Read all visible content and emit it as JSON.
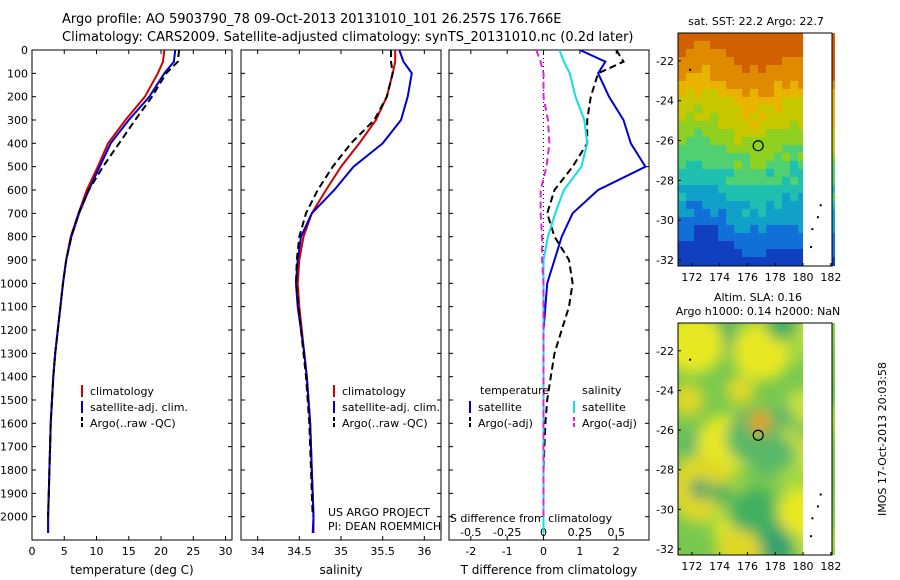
{
  "header": {
    "line1": "Argo profile: AO 5903790_78 09-Oct-2013 20131010_101 26.257S 176.766E",
    "line2": "Climatology: CARS2009. Satellite-adjusted climatology: synTS_20131010.nc (0.2d later)"
  },
  "colors": {
    "climatology": "#d00000",
    "satellite": "#0000d0",
    "argo": "#000000",
    "satellite_salinity": "#10e0e0",
    "argo_salinity": "#e020e0"
  },
  "credits": {
    "line1": "US ARGO PROJECT",
    "line2": "PI: DEAN ROEMMICH"
  },
  "stamp": "IMOS 17-Oct-2013 20:03:58",
  "chart_data": [
    {
      "type": "line",
      "name": "temperature-profile",
      "xlabel": "temperature (deg C)",
      "ylabel": "",
      "xlim": [
        0,
        31
      ],
      "ylim": [
        2100,
        0
      ],
      "xticks": [
        0,
        5,
        10,
        15,
        20,
        25,
        30
      ],
      "yticks": [
        0,
        100,
        200,
        300,
        400,
        500,
        600,
        700,
        800,
        900,
        1000,
        1100,
        1200,
        1300,
        1400,
        1500,
        1600,
        1700,
        1800,
        1900,
        2000
      ],
      "legend": [
        "climatology",
        "satellite-adj. clim.",
        "Argo(..raw -QC)"
      ],
      "legend_position": "lower-center",
      "series": [
        {
          "name": "climatology",
          "color": "#d00000",
          "style": "solid",
          "points": [
            [
              20.5,
              0
            ],
            [
              20.3,
              50
            ],
            [
              19.5,
              100
            ],
            [
              17.5,
              200
            ],
            [
              14.5,
              300
            ],
            [
              11.8,
              400
            ],
            [
              10.2,
              500
            ],
            [
              8.5,
              600
            ],
            [
              7.2,
              700
            ],
            [
              6.0,
              800
            ],
            [
              5.3,
              900
            ],
            [
              4.8,
              1000
            ],
            [
              4.4,
              1100
            ],
            [
              4.0,
              1200
            ],
            [
              3.6,
              1300
            ],
            [
              3.3,
              1400
            ],
            [
              3.1,
              1500
            ],
            [
              2.9,
              1600
            ],
            [
              2.8,
              1700
            ],
            [
              2.7,
              1800
            ],
            [
              2.6,
              1900
            ],
            [
              2.5,
              2000
            ],
            [
              2.5,
              2070
            ]
          ]
        },
        {
          "name": "satellite-adj. clim.",
          "color": "#0000d0",
          "style": "solid",
          "points": [
            [
              22.2,
              0
            ],
            [
              22.0,
              50
            ],
            [
              20.5,
              100
            ],
            [
              18.2,
              200
            ],
            [
              15.0,
              300
            ],
            [
              12.2,
              400
            ],
            [
              10.5,
              500
            ],
            [
              8.8,
              600
            ],
            [
              7.3,
              700
            ],
            [
              6.1,
              800
            ],
            [
              5.3,
              900
            ],
            [
              4.8,
              1000
            ],
            [
              4.4,
              1100
            ],
            [
              4.0,
              1200
            ],
            [
              3.6,
              1300
            ],
            [
              3.3,
              1400
            ],
            [
              3.1,
              1500
            ],
            [
              2.9,
              1600
            ],
            [
              2.8,
              1700
            ],
            [
              2.7,
              1800
            ],
            [
              2.6,
              1900
            ],
            [
              2.5,
              2000
            ],
            [
              2.5,
              2070
            ]
          ]
        },
        {
          "name": "Argo(..raw -QC)",
          "color": "#000000",
          "style": "dashed",
          "points": [
            [
              22.8,
              0
            ],
            [
              22.6,
              50
            ],
            [
              20.8,
              100
            ],
            [
              18.6,
              200
            ],
            [
              16.0,
              300
            ],
            [
              13.5,
              400
            ],
            [
              11.0,
              500
            ],
            [
              8.8,
              600
            ],
            [
              7.2,
              700
            ],
            [
              6.1,
              800
            ],
            [
              5.3,
              900
            ],
            [
              4.8,
              1000
            ],
            [
              4.4,
              1100
            ],
            [
              4.0,
              1200
            ],
            [
              3.6,
              1300
            ],
            [
              3.3,
              1400
            ],
            [
              3.1,
              1500
            ],
            [
              2.9,
              1600
            ],
            [
              2.8,
              1700
            ],
            [
              2.7,
              1800
            ],
            [
              2.6,
              1900
            ],
            [
              2.5,
              2000
            ]
          ]
        }
      ]
    },
    {
      "type": "line",
      "name": "salinity-profile",
      "xlabel": "salinity",
      "xlim": [
        33.8,
        36.2
      ],
      "ylim": [
        2100,
        0
      ],
      "xticks": [
        34,
        34.5,
        35,
        35.5,
        36
      ],
      "legend": [
        "climatology",
        "satellite-adj. clim.",
        "Argo(..raw -QC)"
      ],
      "legend_position": "lower-center",
      "series": [
        {
          "name": "climatology",
          "color": "#d00000",
          "style": "solid",
          "points": [
            [
              35.65,
              0
            ],
            [
              35.65,
              50
            ],
            [
              35.62,
              100
            ],
            [
              35.55,
              200
            ],
            [
              35.42,
              300
            ],
            [
              35.22,
              400
            ],
            [
              35.0,
              500
            ],
            [
              34.82,
              600
            ],
            [
              34.65,
              700
            ],
            [
              34.55,
              800
            ],
            [
              34.5,
              900
            ],
            [
              34.48,
              1000
            ],
            [
              34.5,
              1100
            ],
            [
              34.53,
              1200
            ],
            [
              34.56,
              1300
            ],
            [
              34.59,
              1400
            ],
            [
              34.61,
              1500
            ],
            [
              34.63,
              1600
            ],
            [
              34.64,
              1700
            ],
            [
              34.65,
              1800
            ],
            [
              34.66,
              1900
            ],
            [
              34.67,
              2000
            ],
            [
              34.67,
              2070
            ]
          ]
        },
        {
          "name": "satellite-adj. clim.",
          "color": "#0000d0",
          "style": "solid",
          "points": [
            [
              35.7,
              0
            ],
            [
              35.75,
              50
            ],
            [
              35.85,
              100
            ],
            [
              35.8,
              200
            ],
            [
              35.72,
              300
            ],
            [
              35.5,
              400
            ],
            [
              35.15,
              500
            ],
            [
              34.92,
              600
            ],
            [
              34.65,
              700
            ],
            [
              34.52,
              800
            ],
            [
              34.48,
              900
            ],
            [
              34.46,
              1000
            ],
            [
              34.48,
              1100
            ],
            [
              34.52,
              1200
            ],
            [
              34.56,
              1300
            ],
            [
              34.59,
              1400
            ],
            [
              34.61,
              1500
            ],
            [
              34.63,
              1600
            ],
            [
              34.64,
              1700
            ],
            [
              34.65,
              1800
            ],
            [
              34.66,
              1900
            ],
            [
              34.67,
              2000
            ],
            [
              34.66,
              2070
            ]
          ]
        },
        {
          "name": "Argo(..raw -QC)",
          "color": "#000000",
          "style": "dashed",
          "points": [
            [
              35.6,
              0
            ],
            [
              35.6,
              50
            ],
            [
              35.62,
              100
            ],
            [
              35.55,
              200
            ],
            [
              35.4,
              300
            ],
            [
              35.12,
              400
            ],
            [
              34.9,
              500
            ],
            [
              34.72,
              600
            ],
            [
              34.58,
              700
            ],
            [
              34.5,
              800
            ],
            [
              34.47,
              900
            ],
            [
              34.46,
              1000
            ],
            [
              34.49,
              1100
            ],
            [
              34.52,
              1200
            ],
            [
              34.55,
              1300
            ],
            [
              34.58,
              1400
            ],
            [
              34.6,
              1500
            ],
            [
              34.62,
              1600
            ],
            [
              34.63,
              1700
            ],
            [
              34.64,
              1800
            ],
            [
              34.65,
              1900
            ],
            [
              34.66,
              2000
            ]
          ]
        }
      ]
    },
    {
      "type": "line",
      "name": "difference-profile",
      "xlabel": "T difference from climatology",
      "xlabel_top": "S difference from climatology",
      "xlim": [
        -2.6,
        2.9
      ],
      "ylim": [
        2100,
        0
      ],
      "xticks": [
        -2,
        -1,
        0,
        1,
        2
      ],
      "xticks_top": [
        -0.5,
        -0.25,
        0,
        0.25,
        0.5
      ],
      "legend_headers": [
        "temperature",
        "salinity"
      ],
      "legend": [
        "satellite",
        "Argo(-adj)",
        "satellite",
        "Argo(-adj)"
      ],
      "legend_position": "lower-center",
      "series": [
        {
          "name": "temperature satellite",
          "color": "#0000d0",
          "style": "solid",
          "points": [
            [
              1.0,
              0
            ],
            [
              1.7,
              50
            ],
            [
              1.5,
              100
            ],
            [
              1.8,
              200
            ],
            [
              2.2,
              300
            ],
            [
              2.4,
              400
            ],
            [
              2.8,
              500
            ],
            [
              1.5,
              600
            ],
            [
              0.8,
              700
            ],
            [
              0.5,
              800
            ],
            [
              0.3,
              900
            ],
            [
              0.1,
              1000
            ],
            [
              0.05,
              1100
            ],
            [
              0,
              1200
            ],
            [
              0,
              1400
            ],
            [
              0,
              1600
            ],
            [
              0,
              1800
            ],
            [
              0,
              2000
            ],
            [
              0,
              2070
            ]
          ]
        },
        {
          "name": "temperature Argo(-adj)",
          "color": "#000000",
          "style": "dashed",
          "points": [
            [
              2.0,
              0
            ],
            [
              2.2,
              50
            ],
            [
              1.5,
              100
            ],
            [
              1.3,
              200
            ],
            [
              1.2,
              300
            ],
            [
              1.2,
              400
            ],
            [
              0.8,
              500
            ],
            [
              0.3,
              600
            ],
            [
              0.1,
              700
            ],
            [
              0.3,
              800
            ],
            [
              0.7,
              900
            ],
            [
              0.8,
              1000
            ],
            [
              0.7,
              1100
            ],
            [
              0.5,
              1200
            ],
            [
              0.3,
              1300
            ],
            [
              0.2,
              1400
            ],
            [
              0.1,
              1500
            ],
            [
              0.05,
              1600
            ],
            [
              0,
              1800
            ],
            [
              0,
              2000
            ]
          ]
        },
        {
          "name": "salinity satellite",
          "color": "#10e0e0",
          "style": "solid",
          "points": [
            [
              0.11,
              0
            ],
            [
              0.14,
              50
            ],
            [
              0.18,
              100
            ],
            [
              0.22,
              200
            ],
            [
              0.28,
              300
            ],
            [
              0.3,
              400
            ],
            [
              0.26,
              500
            ],
            [
              0.14,
              600
            ],
            [
              0.08,
              700
            ],
            [
              0.03,
              800
            ],
            [
              0.0,
              900
            ],
            [
              0.0,
              1100
            ],
            [
              0.0,
              1400
            ],
            [
              0.0,
              1700
            ],
            [
              0.0,
              2000
            ],
            [
              0.0,
              2070
            ]
          ]
        },
        {
          "name": "salinity Argo(-adj)",
          "color": "#e020e0",
          "style": "dashed",
          "points": [
            [
              -0.05,
              0
            ],
            [
              -0.02,
              50
            ],
            [
              0.0,
              100
            ],
            [
              0.0,
              200
            ],
            [
              0.03,
              300
            ],
            [
              0.04,
              400
            ],
            [
              0.02,
              500
            ],
            [
              -0.02,
              600
            ],
            [
              -0.02,
              700
            ],
            [
              -0.01,
              800
            ],
            [
              -0.01,
              900
            ],
            [
              0.0,
              1000
            ],
            [
              0.0,
              1200
            ],
            [
              0.0,
              1500
            ],
            [
              0.0,
              1800
            ],
            [
              0.0,
              2000
            ]
          ]
        }
      ]
    },
    {
      "type": "heatmap",
      "name": "sst-map",
      "title": "sat. SST: 22.2 Argo: 22.7",
      "xticks": [
        172,
        174,
        176,
        178,
        180,
        182
      ],
      "yticks": [
        -22,
        -24,
        -26,
        -28,
        -30,
        -32
      ],
      "xlim": [
        171,
        182.3
      ],
      "ylim": [
        -32.3,
        -20.6
      ],
      "profile_location": [
        176.77,
        -26.26
      ]
    },
    {
      "type": "heatmap",
      "name": "sla-map",
      "title": "Altim. SLA: 0.16",
      "subtitle": "Argo h1000: 0.14 h2000: NaN",
      "xticks": [
        172,
        174,
        176,
        178,
        180,
        182
      ],
      "yticks": [
        -22,
        -24,
        -26,
        -28,
        -30,
        -32
      ],
      "xlim": [
        171,
        182.3
      ],
      "ylim": [
        -32.3,
        -20.6
      ],
      "profile_location": [
        176.77,
        -26.26
      ]
    }
  ]
}
